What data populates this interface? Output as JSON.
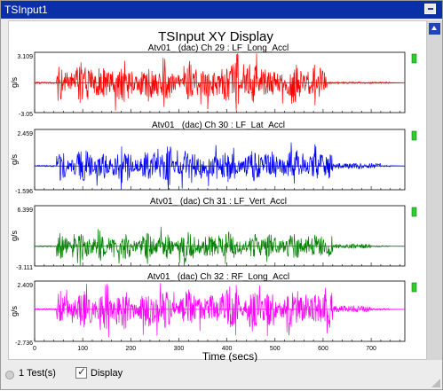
{
  "window": {
    "title": "TSInput1"
  },
  "status": {
    "tests": "1 Test(s)",
    "display_label": "Display",
    "display_checked": true
  },
  "chart_data": {
    "type": "line",
    "title": "TSInput XY Display",
    "xlabel": "Time (secs)",
    "x_ticks": [
      "0",
      "100",
      "200",
      "300",
      "400",
      "500",
      "600",
      "700"
    ],
    "xlim": [
      0,
      770
    ],
    "series": [
      {
        "name": "Atv01_ (dac)  Ch 29 : LF_Long_Accl",
        "ylabel": "g/s",
        "ymax_label": "3.109",
        "ymin_label": "-3.05",
        "ylim": [
          -3.05,
          3.109
        ],
        "color": "#ff0000",
        "active_until": 610,
        "tail_until": 500,
        "burst_at": [
          270,
          420
        ]
      },
      {
        "name": "Atv01_  (dac)  Ch 30 : LF_Lat_Accl",
        "ylabel": "g/s",
        "ymax_label": "2.459",
        "ymin_label": "-1.596",
        "ylim": [
          -1.596,
          2.459
        ],
        "color": "#0000ff",
        "active_until": 620,
        "tail_until": 720,
        "burst_at": [
          280,
          410
        ]
      },
      {
        "name": "Atv01_  (dac)  Ch 31 : LF_Vert_Accl",
        "ylabel": "g/s",
        "ymax_label": "6.399",
        "ymin_label": "-3.111",
        "ylim": [
          -3.111,
          6.399
        ],
        "color": "#008000",
        "active_until": 620,
        "tail_until": 700,
        "burst_at": [
          135,
          310
        ]
      },
      {
        "name": "Atv01_  (dac)  Ch 32 : RF_Long_Accl",
        "ylabel": "g/s",
        "ymax_label": "2.409",
        "ymin_label": "-2.736",
        "ylim": [
          -2.736,
          2.409
        ],
        "color": "#ff00ff",
        "active_until": 620,
        "tail_until": 700,
        "burst_at": [
          150,
          420
        ]
      }
    ]
  }
}
